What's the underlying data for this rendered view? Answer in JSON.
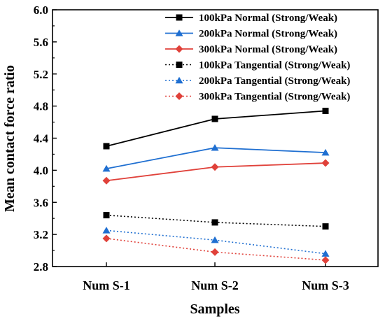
{
  "chart_data": {
    "type": "line",
    "title": "",
    "xlabel": "Samples",
    "ylabel": "Mean contact force ratio",
    "categories": [
      "Num S-1",
      "Num S-2",
      "Num S-3"
    ],
    "ylim": [
      2.8,
      6.0
    ],
    "yticks": [
      "2.8",
      "3.2",
      "3.6",
      "4.0",
      "4.4",
      "4.8",
      "5.2",
      "5.6",
      "6.0"
    ],
    "grid": false,
    "legend_position": "top-right",
    "series": [
      {
        "name": "100kPa Normal (Strong/Weak)",
        "values": [
          4.3,
          4.64,
          4.74
        ],
        "color": "#000000",
        "marker": "square",
        "dash": "solid"
      },
      {
        "name": "200kPa Normal (Strong/Weak)",
        "values": [
          4.02,
          4.28,
          4.22
        ],
        "color": "#1f6fd1",
        "marker": "triangle",
        "dash": "solid"
      },
      {
        "name": "300kPa Normal (Strong/Weak)",
        "values": [
          3.87,
          4.04,
          4.09
        ],
        "color": "#e0413a",
        "marker": "diamond",
        "dash": "solid"
      },
      {
        "name": "100kPa Tangential (Strong/Weak)",
        "values": [
          3.44,
          3.35,
          3.3
        ],
        "color": "#000000",
        "marker": "square",
        "dash": "dotted"
      },
      {
        "name": "200kPa Tangential (Strong/Weak)",
        "values": [
          3.25,
          3.13,
          2.96
        ],
        "color": "#1f6fd1",
        "marker": "triangle",
        "dash": "dotted"
      },
      {
        "name": "300kPa Tangential (Strong/Weak)",
        "values": [
          3.15,
          2.98,
          2.88
        ],
        "color": "#e0413a",
        "marker": "diamond",
        "dash": "dotted"
      }
    ]
  }
}
